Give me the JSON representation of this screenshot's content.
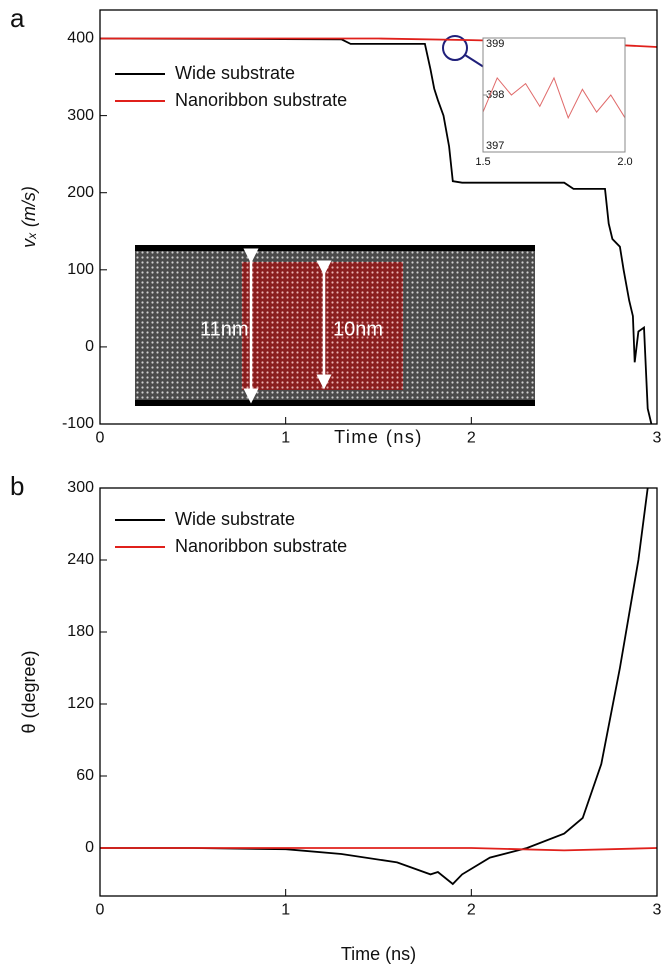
{
  "chart_data": [
    {
      "type": "line",
      "panel": "a",
      "x_label": "Time (ns)",
      "y_label": "vₓ (m/s)",
      "xlim": [
        0,
        3
      ],
      "ylim": [
        -100,
        437
      ],
      "xticks": [
        0,
        1,
        2,
        3
      ],
      "yticks": [
        -100,
        0,
        100,
        200,
        300,
        400
      ],
      "legend": "upper left",
      "annotations": [
        "11nm",
        "10nm"
      ],
      "series": [
        {
          "name": "Wide substrate",
          "color": "#000000",
          "x": [
            0,
            1.3,
            1.35,
            1.75,
            1.78,
            1.8,
            1.82,
            1.85,
            1.88,
            1.9,
            1.95,
            2.5,
            2.55,
            2.72,
            2.74,
            2.76,
            2.8,
            2.82,
            2.85,
            2.87,
            2.88,
            2.9,
            2.93,
            2.95,
            2.97
          ],
          "values": [
            400,
            399,
            393,
            393,
            360,
            335,
            320,
            300,
            260,
            215,
            213,
            213,
            205,
            205,
            160,
            140,
            130,
            100,
            60,
            40,
            -20,
            20,
            25,
            -80,
            -100
          ]
        },
        {
          "name": "Nanoribbon substrate",
          "color": "#e0201b",
          "x": [
            0,
            1.5,
            2,
            2.5,
            3
          ],
          "values": [
            400,
            400,
            398,
            395,
            389
          ]
        }
      ]
    },
    {
      "type": "line",
      "xlim": [
        1.5,
        2.0
      ],
      "ylim": [
        397,
        399
      ],
      "xticks": [
        1.5,
        {
          "value": 2,
          "label": "2.0"
        }
      ],
      "yticks": [
        397,
        398,
        399
      ],
      "series": [
        {
          "color": "#e06a6a",
          "x": [
            1.5,
            1.55,
            1.6,
            1.65,
            1.7,
            1.75,
            1.8,
            1.85,
            1.9,
            1.95,
            2.0
          ],
          "values": [
            397.7,
            398.3,
            398.0,
            398.2,
            397.8,
            398.3,
            397.6,
            398.1,
            397.7,
            398.0,
            397.6
          ]
        }
      ]
    },
    {
      "type": "line",
      "panel": "b",
      "x_label": "Time (ns)",
      "y_label": "θ (degree)",
      "xlim": [
        0,
        3
      ],
      "ylim": [
        -40,
        300
      ],
      "xticks": [
        0,
        1,
        2,
        3
      ],
      "yticks": [
        0,
        60,
        120,
        180,
        240,
        300
      ],
      "legend": "upper left",
      "series": [
        {
          "name": "Wide substrate",
          "color": "#000000",
          "x": [
            0,
            0.5,
            1,
            1.3,
            1.6,
            1.78,
            1.82,
            1.9,
            1.95,
            2.1,
            2.3,
            2.5,
            2.6,
            2.7,
            2.8,
            2.9,
            2.95
          ],
          "values": [
            0,
            0,
            -1,
            -5,
            -12,
            -22,
            -20,
            -30,
            -22,
            -8,
            0,
            12,
            25,
            70,
            150,
            240,
            300
          ]
        },
        {
          "name": "Nanoribbon substrate",
          "color": "#e0201b",
          "x": [
            0,
            1,
            2,
            2.5,
            3
          ],
          "values": [
            0,
            0,
            0,
            -2,
            0
          ]
        }
      ]
    }
  ]
}
